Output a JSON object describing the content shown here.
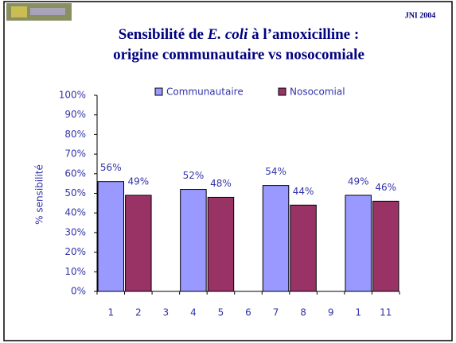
{
  "header_note": "JNI 2004",
  "chart_data": {
    "type": "bar",
    "title": [
      "Sensibilité de",
      "E. coli",
      "à l’amoxicilline :",
      "origine communautaire vs nosocomiale"
    ],
    "y_label": "% sensibilité",
    "categories": [
      "1",
      "2",
      "3",
      "4",
      "5",
      "6",
      "7",
      "8",
      "9",
      "1",
      "11"
    ],
    "series": [
      {
        "name": "Communautaire",
        "color": "#9999ff",
        "values": [
          56,
          null,
          null,
          52,
          null,
          null,
          54,
          null,
          null,
          49,
          null
        ],
        "value_labels": [
          "56%",
          null,
          null,
          "52%",
          null,
          null,
          "54%",
          null,
          null,
          "49%",
          null
        ]
      },
      {
        "name": "Nosocomial",
        "color": "#993366",
        "values": [
          null,
          49,
          null,
          null,
          48,
          null,
          null,
          44,
          null,
          null,
          46
        ],
        "value_labels": [
          null,
          "49%",
          null,
          null,
          "48%",
          null,
          null,
          "44%",
          null,
          null,
          "46%"
        ]
      }
    ],
    "ylim": [
      0,
      100
    ],
    "yticks": [
      {
        "value": 0,
        "label": "0%"
      },
      {
        "value": 10,
        "label": "10%"
      },
      {
        "value": 20,
        "label": "20%"
      },
      {
        "value": 30,
        "label": "30%"
      },
      {
        "value": 40,
        "label": "40%"
      },
      {
        "value": 50,
        "label": "50%"
      },
      {
        "value": 60,
        "label": "60%"
      },
      {
        "value": 70,
        "label": "70%"
      },
      {
        "value": 80,
        "label": "80%"
      },
      {
        "value": 90,
        "label": "90%"
      },
      {
        "value": 100,
        "label": "100%"
      }
    ],
    "grid": false
  }
}
